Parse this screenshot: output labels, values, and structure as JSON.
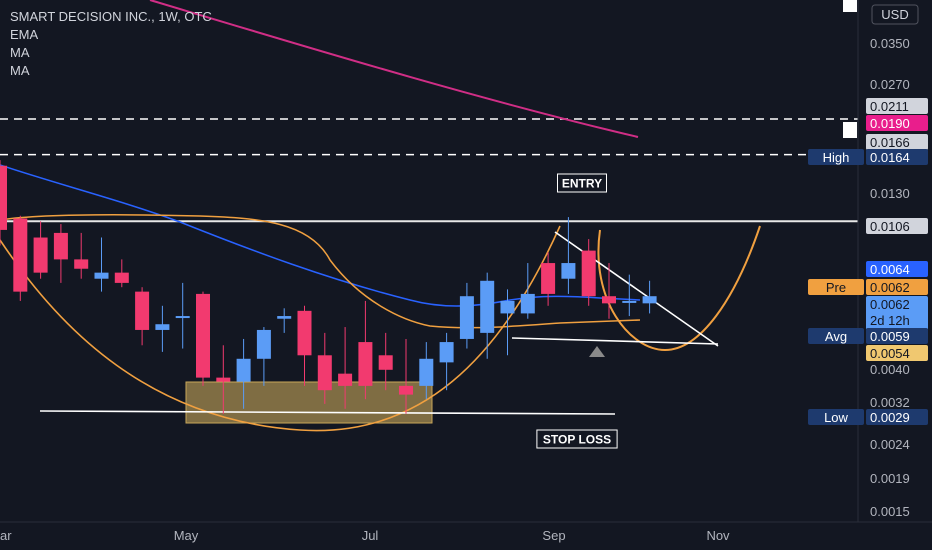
{
  "header": {
    "symbol_line": "SMART DECISION INC., 1W, OTC",
    "indicators": [
      "EMA",
      "MA",
      "MA"
    ]
  },
  "currency_button": "USD",
  "price_axis": {
    "ticks": [
      "0.0350",
      "0.0270",
      "0.0130",
      "0.0040",
      "0.0032",
      "0.0024",
      "0.0019",
      "0.0015"
    ],
    "scale": "log"
  },
  "price_tags": [
    {
      "label": "",
      "value": "0.0211",
      "style": "gray"
    },
    {
      "label": "",
      "value": "0.0190",
      "style": "magenta"
    },
    {
      "label": "",
      "value": "0.0166",
      "style": "gray"
    },
    {
      "label": "High",
      "value": "0.0164",
      "style": "navy"
    },
    {
      "label": "",
      "value": "0.0106",
      "style": "gray"
    },
    {
      "label": "",
      "value": "0.0064",
      "style": "blue"
    },
    {
      "label": "Pre",
      "value": "0.0062",
      "style": "orange"
    },
    {
      "label": "",
      "value": "0.0062",
      "value2": "2d 12h",
      "style": "lightblue"
    },
    {
      "label": "Avg",
      "value": "0.0059",
      "style": "navy"
    },
    {
      "label": "",
      "value": "0.0054",
      "style": "gold"
    },
    {
      "label": "Low",
      "value": "0.0029",
      "style": "navy"
    }
  ],
  "time_axis": [
    "ar",
    "May",
    "Jul",
    "Sep",
    "Nov"
  ],
  "annotations": {
    "entry": "ENTRY",
    "stop_loss": "STOP LOSS"
  },
  "colors": {
    "background": "#131722",
    "bull": "#5b9cf6",
    "bear": "#f23a6f",
    "ema": "#2962ff",
    "ma_orange": "#f0a040",
    "ma_magenta": "#d02e86",
    "zone": "#c8a75a"
  },
  "chart_data": {
    "type": "candlestick",
    "scale": "log",
    "ylim": [
      0.0014,
      0.047
    ],
    "candles": [
      {
        "o": 0.0154,
        "h": 0.016,
        "l": 0.009,
        "c": 0.01
      },
      {
        "o": 0.0108,
        "h": 0.011,
        "l": 0.0062,
        "c": 0.0066
      },
      {
        "o": 0.0095,
        "h": 0.0106,
        "l": 0.0072,
        "c": 0.0075
      },
      {
        "o": 0.0098,
        "h": 0.0104,
        "l": 0.007,
        "c": 0.0082
      },
      {
        "o": 0.0082,
        "h": 0.0098,
        "l": 0.0072,
        "c": 0.0077
      },
      {
        "o": 0.0072,
        "h": 0.0095,
        "l": 0.0066,
        "c": 0.0075
      },
      {
        "o": 0.0075,
        "h": 0.0082,
        "l": 0.0068,
        "c": 0.007
      },
      {
        "o": 0.0066,
        "h": 0.0068,
        "l": 0.0046,
        "c": 0.0051
      },
      {
        "o": 0.0051,
        "h": 0.006,
        "l": 0.0044,
        "c": 0.0053
      },
      {
        "o": 0.0056,
        "h": 0.007,
        "l": 0.0045,
        "c": 0.0056
      },
      {
        "o": 0.0065,
        "h": 0.0066,
        "l": 0.0035,
        "c": 0.0037
      },
      {
        "o": 0.0037,
        "h": 0.0046,
        "l": 0.0029,
        "c": 0.0036
      },
      {
        "o": 0.0036,
        "h": 0.0048,
        "l": 0.003,
        "c": 0.0042
      },
      {
        "o": 0.0042,
        "h": 0.0052,
        "l": 0.0035,
        "c": 0.0051
      },
      {
        "o": 0.0055,
        "h": 0.0059,
        "l": 0.005,
        "c": 0.0056
      },
      {
        "o": 0.0058,
        "h": 0.006,
        "l": 0.0035,
        "c": 0.0043
      },
      {
        "o": 0.0043,
        "h": 0.005,
        "l": 0.0031,
        "c": 0.0034
      },
      {
        "o": 0.0038,
        "h": 0.0052,
        "l": 0.003,
        "c": 0.0035
      },
      {
        "o": 0.0047,
        "h": 0.0062,
        "l": 0.0032,
        "c": 0.0035
      },
      {
        "o": 0.0043,
        "h": 0.005,
        "l": 0.0034,
        "c": 0.0039
      },
      {
        "o": 0.0035,
        "h": 0.0048,
        "l": 0.0029,
        "c": 0.0033
      },
      {
        "o": 0.0035,
        "h": 0.0047,
        "l": 0.0032,
        "c": 0.0042
      },
      {
        "o": 0.0041,
        "h": 0.005,
        "l": 0.0034,
        "c": 0.0047
      },
      {
        "o": 0.0048,
        "h": 0.007,
        "l": 0.0045,
        "c": 0.0064
      },
      {
        "o": 0.005,
        "h": 0.0075,
        "l": 0.0042,
        "c": 0.0071
      },
      {
        "o": 0.0057,
        "h": 0.0067,
        "l": 0.0043,
        "c": 0.0062
      },
      {
        "o": 0.0057,
        "h": 0.008,
        "l": 0.0055,
        "c": 0.0065
      },
      {
        "o": 0.008,
        "h": 0.0086,
        "l": 0.006,
        "c": 0.0065
      },
      {
        "o": 0.0072,
        "h": 0.0109,
        "l": 0.0065,
        "c": 0.008
      },
      {
        "o": 0.0087,
        "h": 0.0094,
        "l": 0.006,
        "c": 0.0064
      },
      {
        "o": 0.0064,
        "h": 0.008,
        "l": 0.0055,
        "c": 0.0061
      },
      {
        "o": 0.0062,
        "h": 0.0074,
        "l": 0.0056,
        "c": 0.0062
      },
      {
        "o": 0.0061,
        "h": 0.0071,
        "l": 0.0057,
        "c": 0.0064
      }
    ],
    "levels": [
      0.0211,
      0.0166,
      0.0106
    ],
    "entry_level": 0.0106,
    "stop_loss_level": 0.0029
  }
}
